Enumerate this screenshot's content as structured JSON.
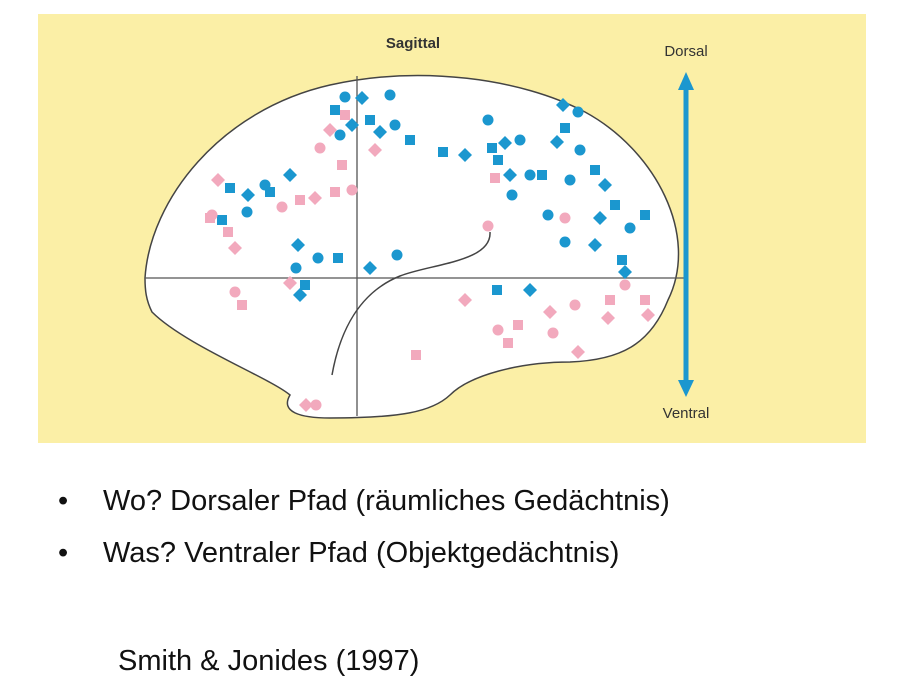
{
  "figure": {
    "title": "Sagittal",
    "top_label": "Dorsal",
    "bottom_label": "Ventral"
  },
  "bullets": [
    "Wo? Dorsaler Pfad (räumliches Gedächtnis)",
    "Was? Ventraler Pfad (Objektgedächtnis)"
  ],
  "citation": "Smith & Jonides (1997)"
}
